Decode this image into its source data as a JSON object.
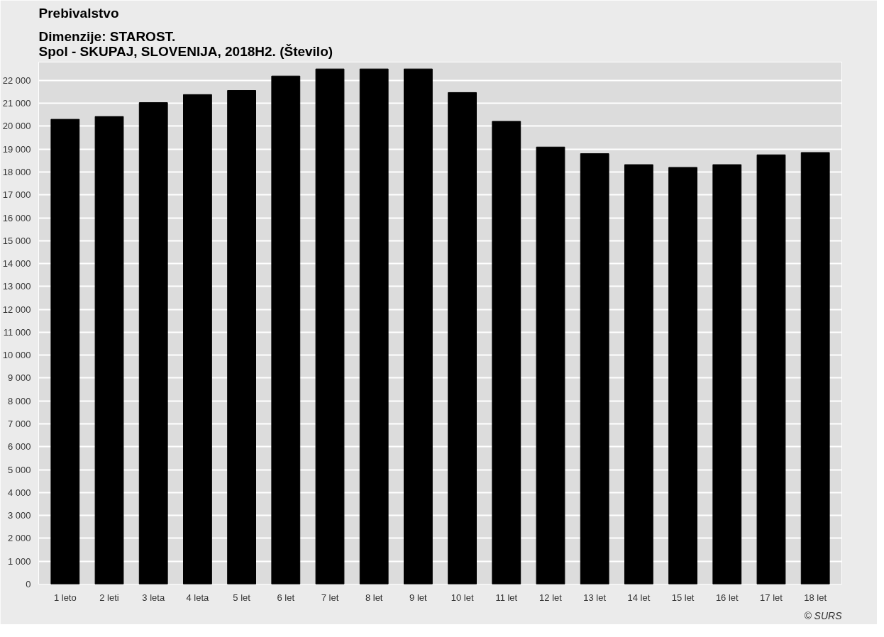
{
  "chart_data": {
    "type": "bar",
    "title": "Prebivalstvo",
    "subtitle": "Dimenzije: STAROST.\nSpol - SKUPAJ, SLOVENIJA, 2018H2. (Število)",
    "categories": [
      "1 leto",
      "2 leti",
      "3 leta",
      "4 leta",
      "5 let",
      "6 let",
      "7 let",
      "8 let",
      "9 let",
      "10 let",
      "11 let",
      "12 let",
      "13 let",
      "14 let",
      "15 let",
      "16 let",
      "17 let",
      "18 let"
    ],
    "values": [
      20300,
      20420,
      21030,
      21380,
      21560,
      22190,
      22500,
      22500,
      22500,
      21470,
      20210,
      19090,
      18800,
      18320,
      18200,
      18320,
      18750,
      18850
    ],
    "color": "#000000",
    "ylim": [
      0,
      22800
    ],
    "yticks": [
      {
        "value": 0,
        "label": "0"
      },
      {
        "value": 1000,
        "label": "1 000"
      },
      {
        "value": 2000,
        "label": "2 000"
      },
      {
        "value": 3000,
        "label": "3 000"
      },
      {
        "value": 4000,
        "label": "4 000"
      },
      {
        "value": 5000,
        "label": "5 000"
      },
      {
        "value": 6000,
        "label": "6 000"
      },
      {
        "value": 7000,
        "label": "7 000"
      },
      {
        "value": 8000,
        "label": "8 000"
      },
      {
        "value": 9000,
        "label": "9 000"
      },
      {
        "value": 10000,
        "label": "10 000"
      },
      {
        "value": 11000,
        "label": "11 000"
      },
      {
        "value": 12000,
        "label": "12 000"
      },
      {
        "value": 13000,
        "label": "13 000"
      },
      {
        "value": 14000,
        "label": "14 000"
      },
      {
        "value": 15000,
        "label": "15 000"
      },
      {
        "value": 16000,
        "label": "16 000"
      },
      {
        "value": 17000,
        "label": "17 000"
      },
      {
        "value": 18000,
        "label": "18 000"
      },
      {
        "value": 19000,
        "label": "19 000"
      },
      {
        "value": 20000,
        "label": "20 000"
      },
      {
        "value": 21000,
        "label": "21 000"
      },
      {
        "value": 22000,
        "label": "22 000"
      }
    ],
    "grid": "y",
    "annotations": [
      "© SURS"
    ]
  }
}
